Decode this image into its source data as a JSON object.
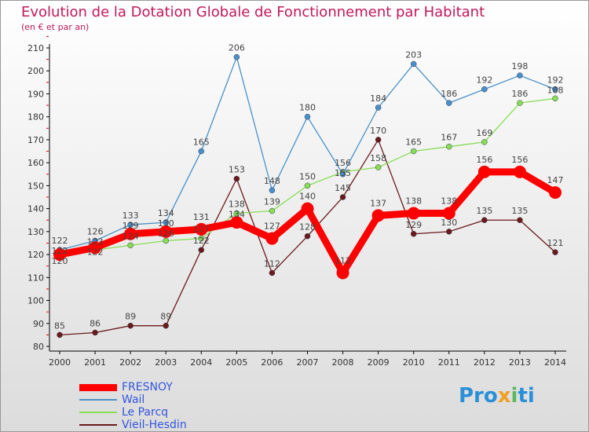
{
  "chart_data": {
    "type": "line",
    "title": "Evolution de la Dotation Globale de Fonctionnement par Habitant",
    "subtitle": "(en € et par an)",
    "x": [
      2000,
      2001,
      2002,
      2003,
      2004,
      2005,
      2006,
      2007,
      2008,
      2009,
      2010,
      2011,
      2012,
      2013,
      2014
    ],
    "ylim": [
      80,
      210
    ],
    "yticks": [
      80,
      90,
      100,
      110,
      120,
      130,
      140,
      150,
      160,
      170,
      180,
      190,
      200,
      210
    ],
    "series": [
      {
        "name": "FRESNOY",
        "color": "#ff0000",
        "values": [
          120,
          123,
          129,
          130,
          131,
          134,
          127,
          140,
          112,
          137,
          138,
          138,
          156,
          156,
          147
        ]
      },
      {
        "name": "Wail",
        "color": "#4a90c8",
        "values": [
          122,
          126,
          133,
          134,
          165,
          206,
          148,
          180,
          155,
          184,
          203,
          186,
          192,
          198,
          192
        ]
      },
      {
        "name": "Le Parcq",
        "color": "#88dd55",
        "values": [
          122,
          122,
          124,
          126,
          127,
          138,
          139,
          150,
          156,
          158,
          165,
          167,
          169,
          186,
          188
        ]
      },
      {
        "name": "Vieil-Hesdin",
        "color": "#6b1a1a",
        "values": [
          85,
          86,
          89,
          89,
          122,
          153,
          112,
          128,
          145,
          170,
          129,
          130,
          135,
          135,
          121
        ]
      }
    ],
    "legend_position": "bottom-left"
  },
  "logo": "Proxiti"
}
